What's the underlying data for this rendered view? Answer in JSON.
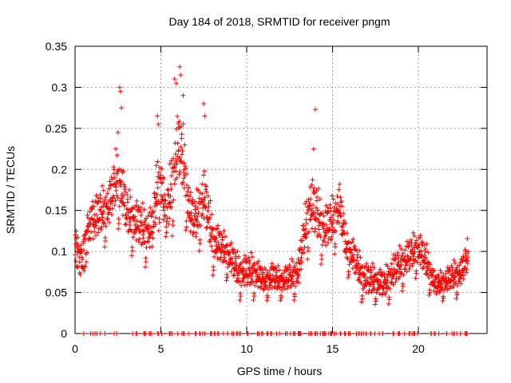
{
  "chart_data": {
    "type": "scatter",
    "title": "Day 184 of 2018, SRMTID for receiver pngm",
    "xlabel": "GPS time / hours",
    "ylabel": "SRMTID / TECUs",
    "xlim": [
      0,
      24
    ],
    "ylim": [
      0,
      0.35
    ],
    "xticks": [
      0,
      5,
      10,
      15,
      20
    ],
    "yticks": [
      0,
      0.05,
      0.1,
      0.15,
      0.2,
      0.25,
      0.3,
      0.35
    ],
    "ytick_labels": [
      "0",
      "0.05",
      "0.1",
      "0.15",
      "0.2",
      "0.25",
      "0.3",
      "0.35"
    ],
    "grid": true,
    "marker": "+",
    "color": "#ff0000",
    "series": [
      {
        "name": "SRMTID",
        "envelope": [
          [
            0.0,
            0.1,
            0.03
          ],
          [
            0.3,
            0.09,
            0.03
          ],
          [
            0.6,
            0.11,
            0.04
          ],
          [
            1.0,
            0.13,
            0.04
          ],
          [
            1.5,
            0.14,
            0.04
          ],
          [
            2.0,
            0.15,
            0.04
          ],
          [
            2.4,
            0.18,
            0.05
          ],
          [
            2.7,
            0.17,
            0.05
          ],
          [
            3.0,
            0.14,
            0.04
          ],
          [
            3.5,
            0.13,
            0.04
          ],
          [
            4.0,
            0.12,
            0.04
          ],
          [
            4.5,
            0.12,
            0.04
          ],
          [
            4.8,
            0.17,
            0.05
          ],
          [
            5.0,
            0.18,
            0.05
          ],
          [
            5.3,
            0.13,
            0.04
          ],
          [
            5.7,
            0.18,
            0.06
          ],
          [
            6.0,
            0.22,
            0.06
          ],
          [
            6.3,
            0.2,
            0.06
          ],
          [
            6.7,
            0.14,
            0.04
          ],
          [
            7.0,
            0.13,
            0.04
          ],
          [
            7.5,
            0.16,
            0.05
          ],
          [
            8.0,
            0.11,
            0.04
          ],
          [
            8.5,
            0.1,
            0.03
          ],
          [
            9.0,
            0.09,
            0.03
          ],
          [
            9.5,
            0.07,
            0.03
          ],
          [
            10.0,
            0.07,
            0.03
          ],
          [
            10.5,
            0.07,
            0.03
          ],
          [
            11.0,
            0.06,
            0.02
          ],
          [
            11.5,
            0.065,
            0.025
          ],
          [
            12.0,
            0.06,
            0.02
          ],
          [
            12.5,
            0.065,
            0.025
          ],
          [
            13.0,
            0.07,
            0.03
          ],
          [
            13.4,
            0.12,
            0.04
          ],
          [
            13.7,
            0.15,
            0.05
          ],
          [
            14.0,
            0.14,
            0.05
          ],
          [
            14.5,
            0.12,
            0.04
          ],
          [
            15.0,
            0.13,
            0.04
          ],
          [
            15.4,
            0.15,
            0.04
          ],
          [
            15.8,
            0.1,
            0.03
          ],
          [
            16.2,
            0.09,
            0.03
          ],
          [
            16.6,
            0.07,
            0.03
          ],
          [
            17.0,
            0.06,
            0.03
          ],
          [
            17.5,
            0.06,
            0.025
          ],
          [
            18.0,
            0.055,
            0.025
          ],
          [
            18.5,
            0.07,
            0.03
          ],
          [
            19.0,
            0.08,
            0.03
          ],
          [
            19.5,
            0.09,
            0.03
          ],
          [
            20.0,
            0.1,
            0.03
          ],
          [
            20.5,
            0.08,
            0.03
          ],
          [
            21.0,
            0.055,
            0.02
          ],
          [
            21.5,
            0.06,
            0.02
          ],
          [
            22.0,
            0.065,
            0.025
          ],
          [
            22.5,
            0.07,
            0.025
          ],
          [
            22.9,
            0.09,
            0.03
          ]
        ],
        "peaks": [
          [
            2.6,
            0.3
          ],
          [
            2.65,
            0.295
          ],
          [
            2.7,
            0.275
          ],
          [
            2.5,
            0.245
          ],
          [
            4.8,
            0.265
          ],
          [
            4.85,
            0.255
          ],
          [
            5.8,
            0.31
          ],
          [
            5.9,
            0.305
          ],
          [
            6.1,
            0.325
          ],
          [
            6.15,
            0.315
          ],
          [
            6.3,
            0.29
          ],
          [
            7.5,
            0.28
          ],
          [
            7.55,
            0.265
          ],
          [
            14.0,
            0.273
          ],
          [
            13.9,
            0.225
          ]
        ],
        "zero_points_x_range": [
          0.5,
          22.9
        ]
      }
    ]
  }
}
